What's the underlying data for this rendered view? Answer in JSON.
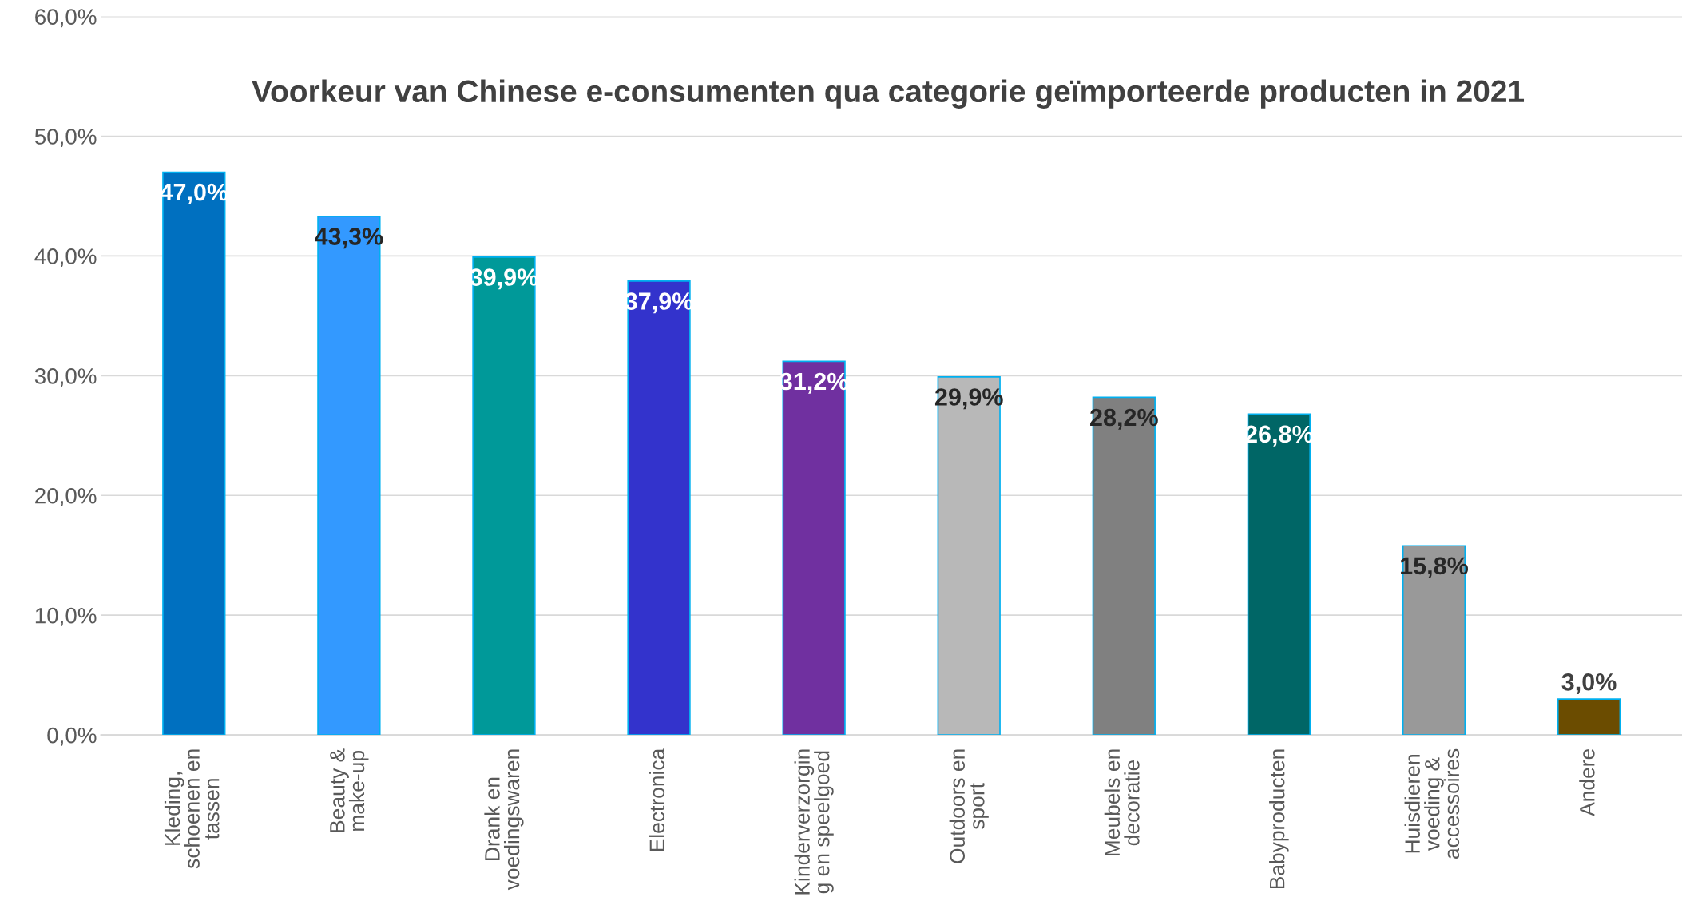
{
  "chart_data": {
    "type": "bar",
    "title": "Voorkeur van Chinese e-consumenten qua categorie geïmporteerde producten in 2021",
    "categories": [
      "Kleding,\nschoenen en\ntassen",
      "Beauty &\nmake-up",
      "Drank en\nvoedingswaren",
      "Electronica",
      "Kinderverzorgin\ng en speelgoed",
      "Outdoors en\nsport",
      "Meubels en\ndecoratie",
      "Babyproducten",
      "Huisdieren\nvoeding &\naccessoires",
      "Andere"
    ],
    "values": [
      47.0,
      43.3,
      39.9,
      37.9,
      31.2,
      29.9,
      28.2,
      26.8,
      15.8,
      3.0
    ],
    "colors": [
      "#0070c0",
      "#3399ff",
      "#009999",
      "#3333cc",
      "#7030a0",
      "#b8b8b8",
      "#808080",
      "#006666",
      "#999999",
      "#6b4c00"
    ],
    "value_labels": [
      "47,0%",
      "43,3%",
      "39,9%",
      "37,9%",
      "31,2%",
      "29,9%",
      "28,2%",
      "26,8%",
      "15,8%",
      "3,0%"
    ],
    "ylim": [
      0,
      60
    ],
    "yticks": [
      {
        "value": 0,
        "label": "0,0%"
      },
      {
        "value": 10,
        "label": "10,0%"
      },
      {
        "value": 20,
        "label": "20,0%"
      },
      {
        "value": 30,
        "label": "30,0%"
      },
      {
        "value": 40,
        "label": "40,0%"
      },
      {
        "value": 50,
        "label": "50,0%"
      },
      {
        "value": 60,
        "label": "60,0%"
      }
    ],
    "grid": "y",
    "legend": false
  }
}
